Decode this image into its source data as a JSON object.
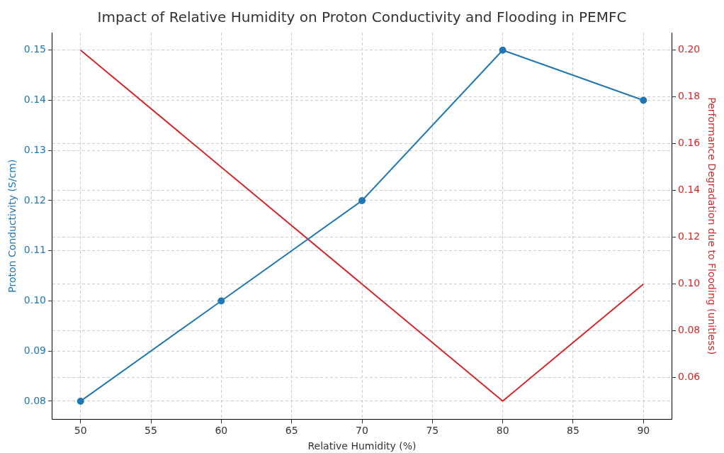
{
  "chart_data": {
    "type": "line",
    "title": "Impact of Relative Humidity on Proton Conductivity and Flooding in PEMFC",
    "xlabel": "Relative Humidity (%)",
    "ylabel": "Proton Conductivity (S/cm)",
    "y2label": "Performance Degradation due to Flooding (unitless)",
    "x": [
      50,
      60,
      70,
      80,
      90
    ],
    "series": [
      {
        "color": "#1f77b4",
        "values": [
          0.08,
          0.1,
          0.12,
          0.15,
          0.14
        ],
        "marker": "circle"
      },
      {
        "color": "#d62728",
        "values": [
          0.2,
          0.15,
          0.1,
          0.05,
          0.1
        ],
        "axis": "y2",
        "marker": "none"
      }
    ],
    "xlim": [
      48,
      92
    ],
    "xticks": [
      50,
      55,
      60,
      65,
      70,
      75,
      80,
      85,
      90
    ],
    "ylim": [
      0.0764,
      0.1535
    ],
    "yticks": [
      {
        "value": 0.08,
        "label": "0.08"
      },
      {
        "value": 0.09,
        "label": "0.09"
      },
      {
        "value": 0.1,
        "label": "0.10"
      },
      {
        "value": 0.11,
        "label": "0.11"
      },
      {
        "value": 0.12,
        "label": "0.12"
      },
      {
        "value": 0.13,
        "label": "0.13"
      },
      {
        "value": 0.14,
        "label": "0.14"
      },
      {
        "value": 0.15,
        "label": "0.15"
      }
    ],
    "y2lim": [
      0.0422,
      0.2075
    ],
    "y2ticks": [
      {
        "value": 0.06,
        "label": "0.06"
      },
      {
        "value": 0.08,
        "label": "0.08"
      },
      {
        "value": 0.1,
        "label": "0.10"
      },
      {
        "value": 0.12,
        "label": "0.12"
      },
      {
        "value": 0.14,
        "label": "0.14"
      },
      {
        "value": 0.16,
        "label": "0.16"
      },
      {
        "value": 0.18,
        "label": "0.18"
      },
      {
        "value": 0.2,
        "label": "0.20"
      }
    ],
    "grid": true,
    "legend": false,
    "line_style": "solid"
  }
}
